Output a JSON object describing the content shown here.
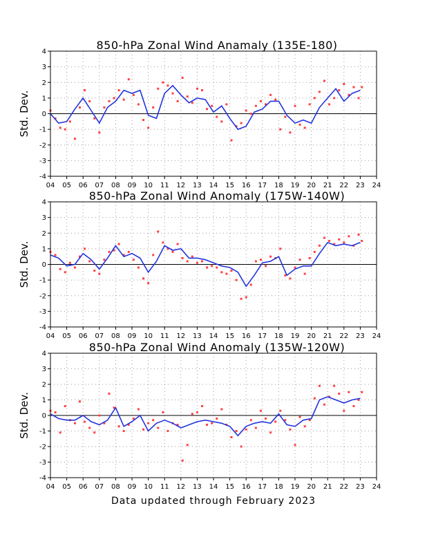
{
  "footer": "Data updated through February 2023",
  "colors": {
    "points": "#ff4040",
    "smooth": "#2233dd",
    "grid": "#999999",
    "axis": "#000000"
  },
  "chart_data": [
    {
      "type": "scatter",
      "title": "850-hPa Zonal Wind Anamaly (135E-180)",
      "ylabel": "Std. Dev.",
      "xlabel": "",
      "ylim": [
        -4,
        4
      ],
      "xlim": [
        2004,
        2024
      ],
      "yticks": [
        "4",
        "3",
        "2",
        "1",
        "0",
        "-1",
        "-2",
        "-3",
        "-4"
      ],
      "xticks": [
        "04",
        "05",
        "06",
        "07",
        "08",
        "09",
        "10",
        "11",
        "12",
        "13",
        "14",
        "15",
        "16",
        "17",
        "18",
        "19",
        "20",
        "21",
        "22",
        "23",
        "24"
      ],
      "grid": true,
      "series": [
        {
          "style": "points",
          "x": [
            2004.0,
            2004.3,
            2004.6,
            2004.9,
            2005.2,
            2005.5,
            2005.8,
            2006.1,
            2006.4,
            2006.7,
            2007.0,
            2007.3,
            2007.6,
            2007.9,
            2008.2,
            2008.5,
            2008.8,
            2009.1,
            2009.4,
            2009.7,
            2010.0,
            2010.3,
            2010.6,
            2010.9,
            2011.2,
            2011.5,
            2011.8,
            2012.1,
            2012.4,
            2012.7,
            2013.0,
            2013.3,
            2013.6,
            2013.9,
            2014.2,
            2014.5,
            2014.8,
            2015.1,
            2015.4,
            2015.7,
            2016.0,
            2016.3,
            2016.6,
            2016.9,
            2017.2,
            2017.5,
            2017.8,
            2018.1,
            2018.4,
            2018.7,
            2019.0,
            2019.3,
            2019.6,
            2019.9,
            2020.2,
            2020.5,
            2020.8,
            2021.1,
            2021.4,
            2021.7,
            2022.0,
            2022.3,
            2022.6,
            2022.9,
            2023.1
          ],
          "y": [
            0.2,
            -0.3,
            -0.9,
            -1.0,
            -0.5,
            -1.6,
            0.4,
            1.5,
            0.8,
            -0.3,
            -1.2,
            0.4,
            0.8,
            1.0,
            1.5,
            0.9,
            2.2,
            1.2,
            0.6,
            -0.4,
            -0.9,
            0.4,
            1.6,
            2.0,
            1.8,
            1.3,
            0.8,
            2.3,
            1.1,
            0.7,
            1.6,
            1.5,
            0.3,
            0.5,
            -0.2,
            -0.5,
            0.6,
            -1.7,
            -0.8,
            -0.6,
            0.2,
            0.0,
            0.5,
            0.8,
            0.6,
            1.2,
            0.9,
            -1.0,
            -0.2,
            -1.2,
            0.5,
            -0.7,
            -0.9,
            0.6,
            1.0,
            1.4,
            2.1,
            0.6,
            1.0,
            1.5,
            1.9,
            1.2,
            1.7,
            1.0,
            1.7
          ]
        },
        {
          "style": "line",
          "x": [
            2004.0,
            2004.5,
            2005.0,
            2005.5,
            2006.0,
            2006.5,
            2007.0,
            2007.5,
            2008.0,
            2008.5,
            2009.0,
            2009.5,
            2010.0,
            2010.5,
            2011.0,
            2011.5,
            2012.0,
            2012.5,
            2013.0,
            2013.5,
            2014.0,
            2014.5,
            2015.0,
            2015.5,
            2016.0,
            2016.5,
            2017.0,
            2017.5,
            2018.0,
            2018.5,
            2019.0,
            2019.5,
            2020.0,
            2020.5,
            2021.0,
            2021.5,
            2022.0,
            2022.5,
            2023.0
          ],
          "y": [
            0.0,
            -0.6,
            -0.5,
            0.3,
            1.0,
            0.2,
            -0.6,
            0.4,
            0.8,
            1.5,
            1.3,
            1.5,
            -0.1,
            -0.3,
            1.3,
            1.8,
            1.2,
            0.7,
            1.0,
            0.9,
            0.1,
            0.5,
            -0.3,
            -1.0,
            -0.8,
            0.1,
            0.3,
            0.8,
            0.8,
            -0.1,
            -0.6,
            -0.4,
            -0.6,
            0.4,
            1.0,
            1.6,
            0.8,
            1.3,
            1.5
          ]
        }
      ]
    },
    {
      "type": "scatter",
      "title": "850-hPa Zonal Wind Anomaly (175W-140W)",
      "ylabel": "Std. Dev.",
      "xlabel": "",
      "ylim": [
        -4,
        4
      ],
      "xlim": [
        2004,
        2024
      ],
      "yticks": [
        "4",
        "3",
        "2",
        "1",
        "0",
        "-1",
        "-2",
        "-3",
        "-4"
      ],
      "xticks": [
        "04",
        "05",
        "06",
        "07",
        "08",
        "09",
        "10",
        "11",
        "12",
        "13",
        "14",
        "15",
        "16",
        "17",
        "18",
        "19",
        "20",
        "21",
        "22",
        "23",
        "24"
      ],
      "grid": true,
      "series": [
        {
          "style": "points",
          "x": [
            2004.0,
            2004.3,
            2004.6,
            2004.9,
            2005.2,
            2005.5,
            2005.8,
            2006.1,
            2006.4,
            2006.7,
            2007.0,
            2007.3,
            2007.6,
            2007.9,
            2008.2,
            2008.5,
            2008.8,
            2009.1,
            2009.4,
            2009.7,
            2010.0,
            2010.3,
            2010.6,
            2010.9,
            2011.2,
            2011.5,
            2011.8,
            2012.1,
            2012.4,
            2012.7,
            2013.0,
            2013.3,
            2013.6,
            2013.9,
            2014.2,
            2014.5,
            2014.8,
            2015.1,
            2015.4,
            2015.7,
            2016.0,
            2016.3,
            2016.6,
            2016.9,
            2017.2,
            2017.5,
            2017.8,
            2018.1,
            2018.4,
            2018.7,
            2019.0,
            2019.3,
            2019.6,
            2019.9,
            2020.2,
            2020.5,
            2020.8,
            2021.1,
            2021.4,
            2021.7,
            2022.0,
            2022.3,
            2022.6,
            2022.9,
            2023.1
          ],
          "y": [
            0.8,
            0.6,
            -0.3,
            -0.5,
            0.1,
            -0.2,
            0.5,
            1.0,
            0.2,
            -0.4,
            -0.6,
            0.3,
            0.8,
            0.9,
            1.3,
            0.6,
            0.8,
            0.3,
            -0.2,
            -0.9,
            -1.2,
            0.6,
            2.1,
            1.4,
            1.0,
            0.8,
            1.3,
            0.4,
            0.2,
            0.5,
            0.1,
            0.2,
            -0.2,
            -0.1,
            -0.2,
            -0.5,
            -0.6,
            -0.4,
            -1.0,
            -2.2,
            -2.1,
            -1.3,
            0.2,
            0.3,
            -0.1,
            0.5,
            0.4,
            1.0,
            -0.7,
            -0.9,
            -0.2,
            0.3,
            -0.6,
            0.4,
            0.8,
            1.2,
            1.7,
            1.5,
            1.3,
            1.6,
            1.4,
            1.8,
            1.2,
            1.9,
            1.5
          ]
        },
        {
          "style": "line",
          "x": [
            2004.0,
            2004.5,
            2005.0,
            2005.5,
            2006.0,
            2006.5,
            2007.0,
            2007.5,
            2008.0,
            2008.5,
            2009.0,
            2009.5,
            2010.0,
            2010.5,
            2011.0,
            2011.5,
            2012.0,
            2012.5,
            2013.0,
            2013.5,
            2014.0,
            2014.5,
            2015.0,
            2015.5,
            2016.0,
            2016.5,
            2017.0,
            2017.5,
            2018.0,
            2018.5,
            2019.0,
            2019.5,
            2020.0,
            2020.5,
            2021.0,
            2021.5,
            2022.0,
            2022.5,
            2023.0
          ],
          "y": [
            0.6,
            0.4,
            -0.1,
            0.0,
            0.7,
            0.3,
            -0.3,
            0.4,
            1.2,
            0.5,
            0.7,
            0.4,
            -0.5,
            0.2,
            1.2,
            0.9,
            1.0,
            0.4,
            0.4,
            0.3,
            0.1,
            -0.1,
            -0.2,
            -0.5,
            -1.4,
            -0.7,
            0.1,
            0.2,
            0.5,
            -0.7,
            -0.3,
            -0.1,
            -0.1,
            0.7,
            1.4,
            1.2,
            1.3,
            1.2,
            1.4
          ]
        }
      ]
    },
    {
      "type": "scatter",
      "title": "850-hPa Zonal Wind Anomaly (135W-120W)",
      "ylabel": "Std. Dev.",
      "xlabel": "",
      "ylim": [
        -4,
        4
      ],
      "xlim": [
        2004,
        2024
      ],
      "yticks": [
        "4",
        "3",
        "2",
        "1",
        "0",
        "-1",
        "-2",
        "-3",
        "-4"
      ],
      "xticks": [
        "04",
        "05",
        "06",
        "07",
        "08",
        "09",
        "10",
        "11",
        "12",
        "13",
        "14",
        "15",
        "16",
        "17",
        "18",
        "19",
        "20",
        "21",
        "22",
        "23",
        "24"
      ],
      "grid": true,
      "series": [
        {
          "style": "points",
          "x": [
            2004.0,
            2004.3,
            2004.6,
            2004.9,
            2005.2,
            2005.5,
            2005.8,
            2006.1,
            2006.4,
            2006.7,
            2007.0,
            2007.3,
            2007.6,
            2007.9,
            2008.2,
            2008.5,
            2008.8,
            2009.1,
            2009.4,
            2009.7,
            2010.0,
            2010.3,
            2010.6,
            2010.9,
            2011.2,
            2011.5,
            2011.8,
            2012.1,
            2012.4,
            2012.7,
            2013.0,
            2013.3,
            2013.6,
            2013.9,
            2014.2,
            2014.5,
            2014.8,
            2015.1,
            2015.4,
            2015.7,
            2016.0,
            2016.3,
            2016.6,
            2016.9,
            2017.2,
            2017.5,
            2017.8,
            2018.1,
            2018.4,
            2018.7,
            2019.0,
            2019.3,
            2019.6,
            2019.9,
            2020.2,
            2020.5,
            2020.8,
            2021.1,
            2021.4,
            2021.7,
            2022.0,
            2022.3,
            2022.6,
            2022.9,
            2023.1
          ],
          "y": [
            0.3,
            0.2,
            -1.1,
            0.6,
            -0.3,
            -0.5,
            0.9,
            -0.4,
            -0.8,
            -1.1,
            0.0,
            -0.5,
            1.4,
            0.5,
            -0.7,
            -1.0,
            -0.6,
            -0.2,
            0.4,
            -0.9,
            -0.5,
            -0.3,
            -0.8,
            0.2,
            -1.0,
            -0.5,
            -0.6,
            -2.9,
            -1.9,
            0.1,
            0.2,
            0.6,
            -0.6,
            -0.5,
            -0.2,
            0.4,
            -0.6,
            -1.4,
            -1.0,
            -2.0,
            -0.9,
            -0.3,
            -0.8,
            0.3,
            -0.2,
            -1.1,
            -0.4,
            0.3,
            -0.3,
            -0.9,
            -1.9,
            -0.1,
            -0.7,
            -0.3,
            1.1,
            1.9,
            0.7,
            1.2,
            1.9,
            1.4,
            0.3,
            1.5,
            0.6,
            1.0,
            1.5
          ]
        },
        {
          "style": "line",
          "x": [
            2004.0,
            2004.5,
            2005.0,
            2005.5,
            2006.0,
            2006.5,
            2007.0,
            2007.5,
            2008.0,
            2008.5,
            2009.0,
            2009.5,
            2010.0,
            2010.5,
            2011.0,
            2011.5,
            2012.0,
            2012.5,
            2013.0,
            2013.5,
            2014.0,
            2014.5,
            2015.0,
            2015.5,
            2016.0,
            2016.5,
            2017.0,
            2017.5,
            2018.0,
            2018.5,
            2019.0,
            2019.5,
            2020.0,
            2020.5,
            2021.0,
            2021.5,
            2022.0,
            2022.5,
            2023.0
          ],
          "y": [
            0.1,
            -0.2,
            -0.3,
            -0.3,
            0.0,
            -0.4,
            -0.6,
            -0.3,
            0.5,
            -0.7,
            -0.4,
            0.0,
            -1.0,
            -0.5,
            -0.3,
            -0.5,
            -0.8,
            -0.6,
            -0.4,
            -0.3,
            -0.4,
            -0.5,
            -0.7,
            -1.3,
            -0.7,
            -0.5,
            -0.4,
            -0.5,
            0.1,
            -0.6,
            -0.7,
            -0.3,
            -0.2,
            1.0,
            1.2,
            1.0,
            0.8,
            1.0,
            1.1
          ]
        }
      ]
    }
  ]
}
